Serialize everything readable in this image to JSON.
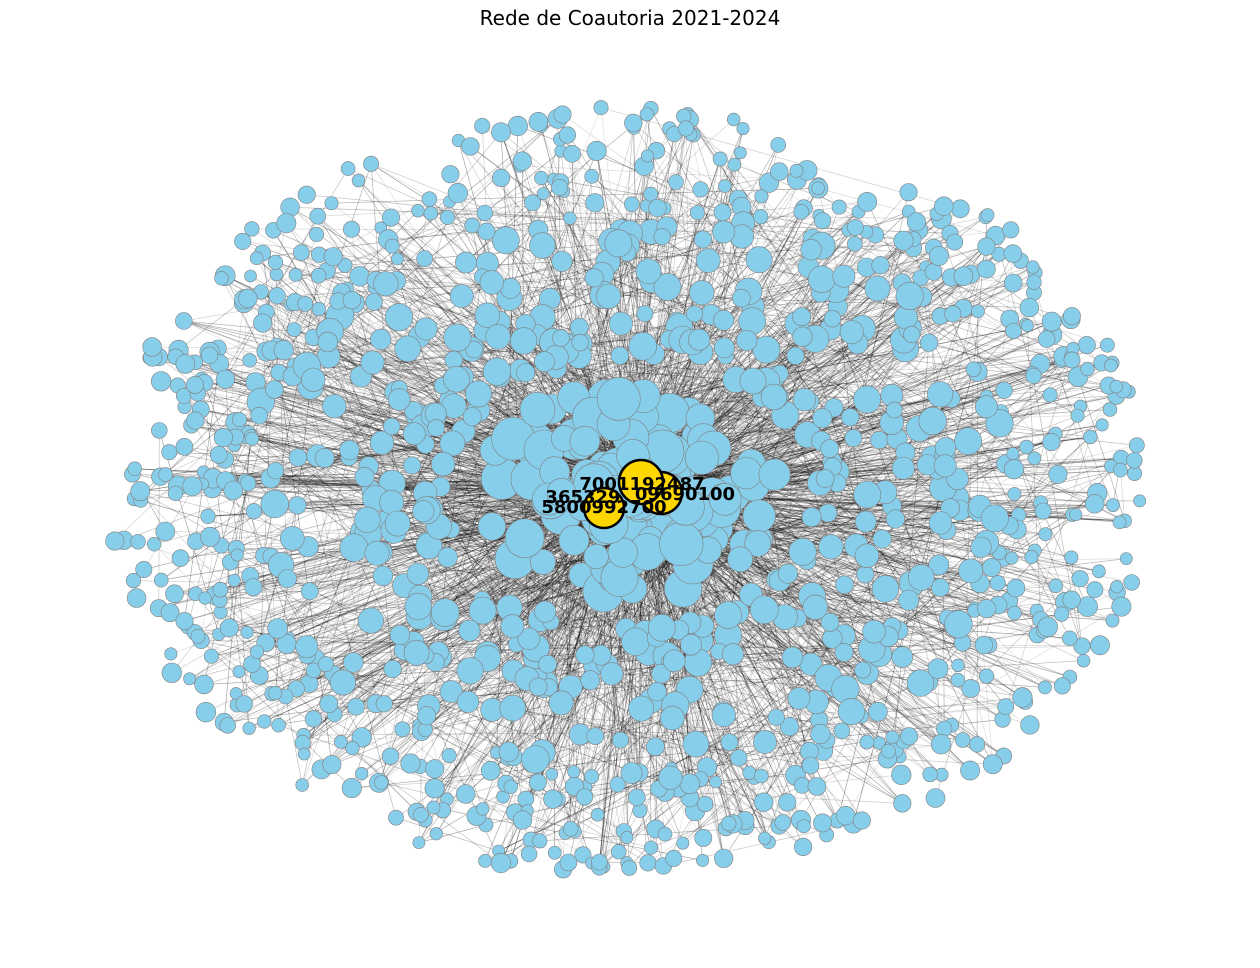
{
  "figure": {
    "title": "Rede de Coautoria 2021-2024"
  },
  "network": {
    "colors": {
      "background": "#ffffff",
      "node_fill": "#87ceeb",
      "node_stroke": "#808080",
      "hub_fill": "#ffd700",
      "hub_stroke": "#000000",
      "edge": "#000000"
    },
    "hub_labels": [
      {
        "text": "7001192487"
      },
      {
        "text": "365329"
      },
      {
        "text": "09690100"
      },
      {
        "text": "5800992700"
      }
    ]
  }
}
